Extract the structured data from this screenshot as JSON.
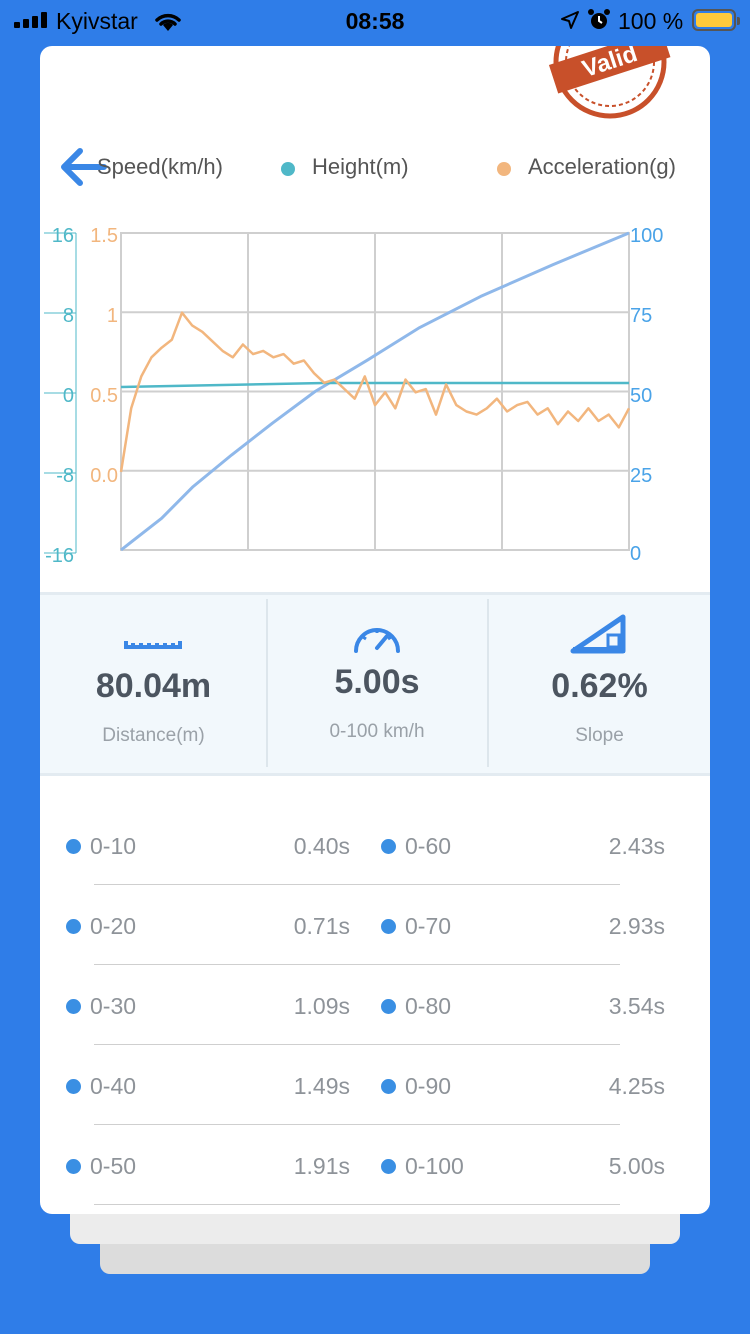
{
  "status_bar": {
    "carrier": "Kyivstar",
    "time": "08:58",
    "battery": "100 %"
  },
  "legend": [
    {
      "label": "Speed(km/h)",
      "color": "#4aa3e8"
    },
    {
      "label": "Height(m)",
      "color": "#4fb8c8"
    },
    {
      "label": "Acceleration(g)",
      "color": "#f2b67e"
    }
  ],
  "stamp": {
    "text": "Valid",
    "color": "#c8502a"
  },
  "chart_data": {
    "type": "line",
    "y_axes": {
      "height_ticks": [
        "16",
        "8",
        "0",
        "-8",
        "-16"
      ],
      "acceleration_ticks": [
        "1.5",
        "1",
        "0.5",
        "0.0"
      ],
      "speed_ticks": [
        "100",
        "75",
        "50",
        "25",
        "0"
      ]
    },
    "x_range": [
      0,
      5
    ],
    "grid": true,
    "series": [
      {
        "name": "Speed(km/h)",
        "color": "#8fb8ea",
        "x": [
          0,
          0.4,
          0.71,
          1.09,
          1.49,
          1.91,
          2.43,
          2.93,
          3.54,
          4.25,
          5.0
        ],
        "y": [
          0,
          10,
          20,
          30,
          40,
          50,
          60,
          70,
          80,
          90,
          100
        ]
      },
      {
        "name": "Height(m)",
        "color": "#4fb8c8",
        "x": [
          0,
          0.5,
          1,
          1.5,
          2,
          2.5,
          3,
          3.5,
          4,
          4.5,
          5.0
        ],
        "y": [
          0.2,
          0.3,
          0.4,
          0.5,
          0.6,
          0.6,
          0.6,
          0.6,
          0.6,
          0.6,
          0.6
        ]
      },
      {
        "name": "Acceleration(g)",
        "color": "#f2b67e",
        "x": [
          0,
          0.05,
          0.1,
          0.2,
          0.3,
          0.4,
          0.5,
          0.6,
          0.7,
          0.8,
          0.9,
          1.0,
          1.1,
          1.2,
          1.3,
          1.4,
          1.5,
          1.6,
          1.7,
          1.8,
          1.9,
          2.0,
          2.1,
          2.2,
          2.3,
          2.4,
          2.5,
          2.6,
          2.7,
          2.8,
          2.9,
          3.0,
          3.1,
          3.2,
          3.3,
          3.4,
          3.5,
          3.6,
          3.7,
          3.8,
          3.9,
          4.0,
          4.1,
          4.2,
          4.3,
          4.4,
          4.5,
          4.6,
          4.7,
          4.8,
          4.9,
          5.0
        ],
        "y": [
          0.0,
          0.2,
          0.4,
          0.6,
          0.72,
          0.78,
          0.83,
          1.0,
          0.92,
          0.88,
          0.82,
          0.76,
          0.72,
          0.8,
          0.74,
          0.76,
          0.72,
          0.74,
          0.68,
          0.7,
          0.62,
          0.56,
          0.58,
          0.52,
          0.46,
          0.6,
          0.42,
          0.5,
          0.4,
          0.58,
          0.5,
          0.52,
          0.36,
          0.55,
          0.42,
          0.38,
          0.36,
          0.4,
          0.46,
          0.38,
          0.42,
          0.44,
          0.36,
          0.4,
          0.3,
          0.38,
          0.32,
          0.4,
          0.32,
          0.36,
          0.28,
          0.4
        ]
      }
    ]
  },
  "stats": [
    {
      "value": "80.04m",
      "label": "Distance(m)",
      "icon": "ruler-icon"
    },
    {
      "value": "5.00s",
      "label": "0-100 km/h",
      "icon": "speedometer-icon"
    },
    {
      "value": "0.62%",
      "label": "Slope",
      "icon": "slope-icon"
    }
  ],
  "times": [
    {
      "left_label": "0-10",
      "left_value": "0.40s",
      "right_label": "0-60",
      "right_value": "2.43s"
    },
    {
      "left_label": "0-20",
      "left_value": "0.71s",
      "right_label": "0-70",
      "right_value": "2.93s"
    },
    {
      "left_label": "0-30",
      "left_value": "1.09s",
      "right_label": "0-80",
      "right_value": "3.54s"
    },
    {
      "left_label": "0-40",
      "left_value": "1.49s",
      "right_label": "0-90",
      "right_value": "4.25s"
    },
    {
      "left_label": "0-50",
      "left_value": "1.91s",
      "right_label": "0-100",
      "right_value": "5.00s"
    }
  ]
}
